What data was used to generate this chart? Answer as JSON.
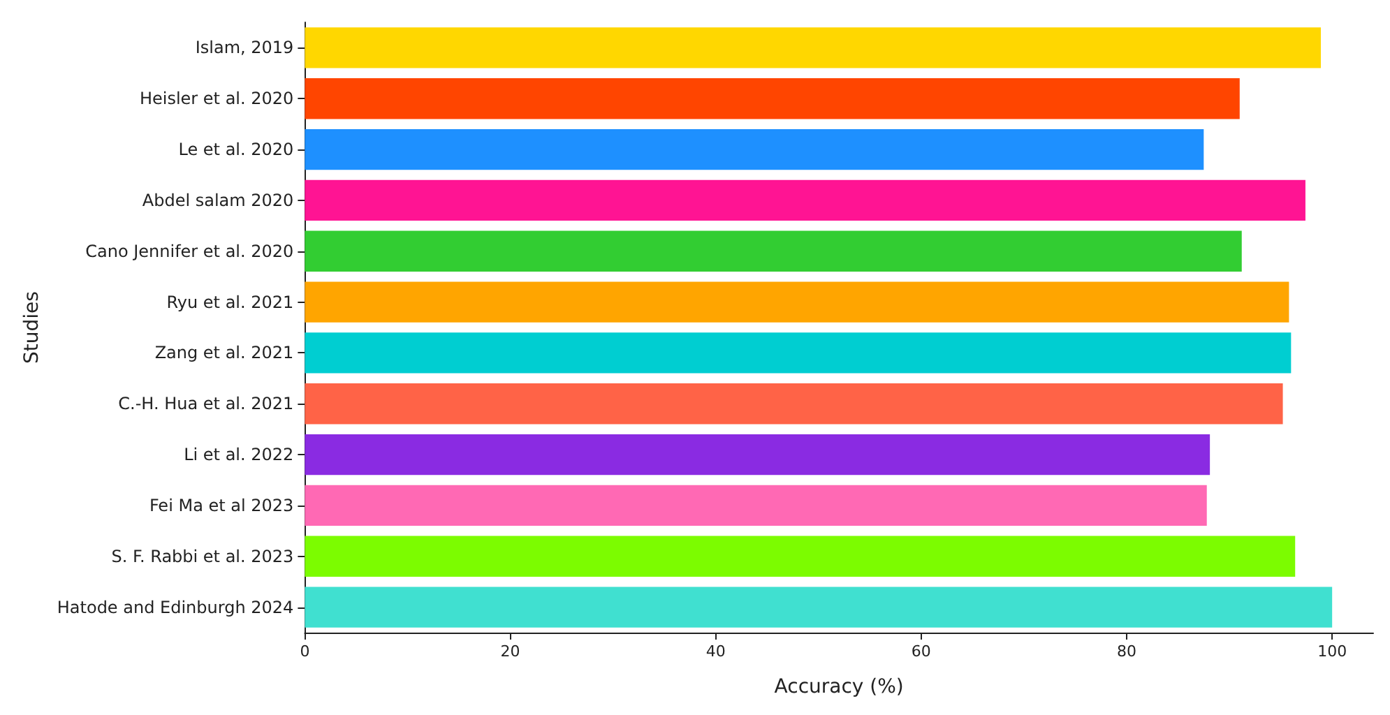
{
  "chart_data": {
    "type": "bar",
    "orientation": "horizontal",
    "xlabel": "Accuracy (%)",
    "ylabel": "Studies",
    "categories": [
      "Islam, 2019",
      "Heisler et al. 2020",
      "Le et al. 2020",
      "Abdel salam 2020",
      "Cano Jennifer et al. 2020",
      "Ryu et al. 2021",
      "Zang et al. 2021",
      "C.-H. Hua et al. 2021",
      "Li et al. 2022",
      "Fei Ma et al 2023",
      "S. F. Rabbi et al. 2023",
      "Hatode and Edinburgh 2024"
    ],
    "values": [
      98.9,
      91.0,
      87.5,
      97.4,
      91.2,
      95.8,
      96.0,
      95.2,
      88.1,
      87.8,
      96.4,
      100
    ],
    "colors": [
      "#ffd700",
      "#ff4500",
      "#1e90ff",
      "#ff1493",
      "#32cd32",
      "#ffa500",
      "#00ced1",
      "#ff6347",
      "#8a2be2",
      "#ff69b4",
      "#7cfc00",
      "#40e0d0"
    ],
    "xlim": [
      0,
      104
    ],
    "xticks": [
      0,
      20,
      40,
      60,
      80,
      100
    ],
    "grid": false
  }
}
